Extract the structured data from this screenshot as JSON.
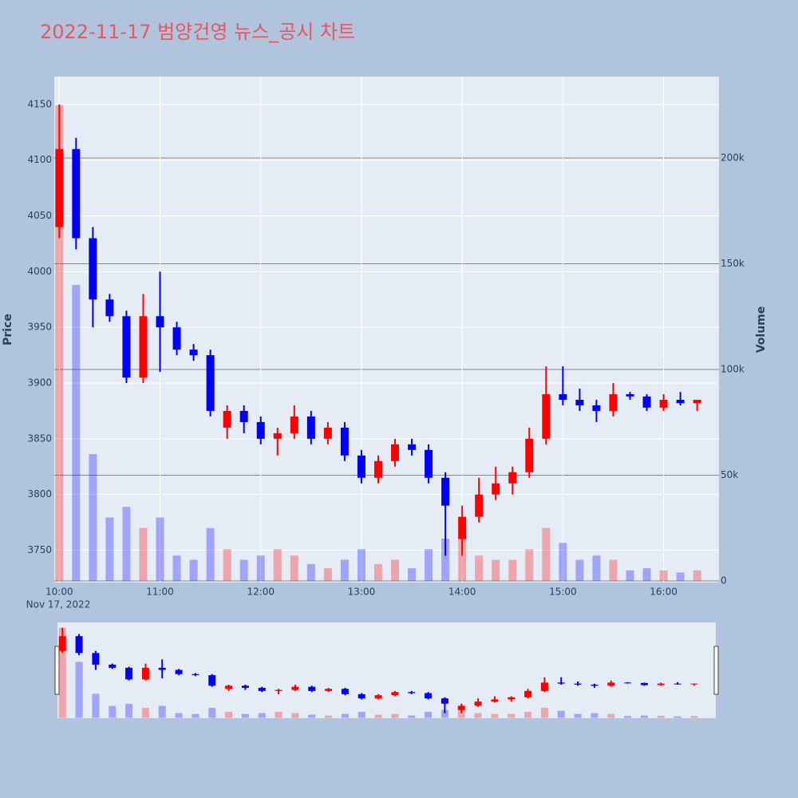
{
  "chart_data": {
    "type": "candlestick",
    "title": "2022-11-17 범양건영 뉴스_공시 차트",
    "y_label": "Price",
    "y2_label": "Volume",
    "date_label": "Nov 17, 2022",
    "increasing_color": "#ff0000",
    "decreasing_color": "#0000ff",
    "x": [
      "10:00",
      "10:10",
      "10:20",
      "10:30",
      "10:40",
      "10:50",
      "11:00",
      "11:10",
      "11:20",
      "11:30",
      "11:40",
      "11:50",
      "12:00",
      "12:10",
      "12:20",
      "12:30",
      "12:40",
      "12:50",
      "13:00",
      "13:10",
      "13:20",
      "13:30",
      "13:40",
      "13:50",
      "14:00",
      "14:10",
      "14:20",
      "14:30",
      "14:40",
      "14:50",
      "15:00",
      "15:10",
      "15:20",
      "15:30",
      "15:40",
      "15:50",
      "16:00",
      "16:10",
      "16:20"
    ],
    "open": [
      4040,
      4110,
      4030,
      3975,
      3960,
      3905,
      3960,
      3950,
      3930,
      3925,
      3860,
      3875,
      3865,
      3850,
      3855,
      3870,
      3850,
      3860,
      3835,
      3815,
      3830,
      3845,
      3840,
      3815,
      3760,
      3780,
      3800,
      3810,
      3820,
      3850,
      3890,
      3885,
      3880,
      3875,
      3890,
      3888,
      3878,
      3885,
      3882
    ],
    "high": [
      4150,
      4120,
      4040,
      3980,
      3965,
      3980,
      4000,
      3955,
      3935,
      3930,
      3880,
      3880,
      3870,
      3860,
      3880,
      3875,
      3865,
      3865,
      3840,
      3835,
      3850,
      3850,
      3845,
      3820,
      3790,
      3815,
      3825,
      3825,
      3860,
      3915,
      3915,
      3895,
      3885,
      3900,
      3892,
      3890,
      3890,
      3892,
      3885
    ],
    "low": [
      4030,
      4020,
      3950,
      3955,
      3900,
      3900,
      3910,
      3925,
      3920,
      3870,
      3850,
      3855,
      3845,
      3835,
      3850,
      3845,
      3845,
      3830,
      3810,
      3810,
      3825,
      3835,
      3810,
      3745,
      3745,
      3775,
      3795,
      3800,
      3815,
      3845,
      3880,
      3875,
      3865,
      3870,
      3885,
      3875,
      3875,
      3880,
      3875
    ],
    "close": [
      4110,
      4030,
      3975,
      3960,
      3905,
      3960,
      3950,
      3930,
      3925,
      3875,
      3875,
      3865,
      3850,
      3855,
      3870,
      3850,
      3860,
      3835,
      3815,
      3830,
      3845,
      3840,
      3815,
      3790,
      3780,
      3800,
      3810,
      3820,
      3850,
      3890,
      3885,
      3880,
      3875,
      3890,
      3888,
      3878,
      3885,
      3882,
      3885
    ],
    "volume_series": {
      "name": "Volume",
      "axis": "y2",
      "values": [
        225000,
        140000,
        60000,
        30000,
        35000,
        25000,
        30000,
        12000,
        10000,
        25000,
        15000,
        10000,
        12000,
        15000,
        12000,
        8000,
        6000,
        10000,
        15000,
        8000,
        10000,
        6000,
        15000,
        20000,
        25000,
        12000,
        10000,
        10000,
        15000,
        25000,
        18000,
        10000,
        12000,
        10000,
        5000,
        6000,
        5000,
        4000,
        5000
      ]
    },
    "xlim": [
      "09:57",
      "16:33"
    ],
    "xticks": [
      "10:00",
      "11:00",
      "12:00",
      "13:00",
      "14:00",
      "15:00",
      "16:00"
    ],
    "ylim": [
      3721,
      4175
    ],
    "yticks": [
      3750,
      3800,
      3850,
      3900,
      3950,
      4000,
      4050,
      4100,
      4150
    ],
    "y2lim": [
      -750,
      238500
    ],
    "y2ticks": [
      0,
      {
        "value": 50000,
        "label": "50k"
      },
      {
        "value": 100000,
        "label": "100k"
      },
      {
        "value": 150000,
        "label": "150k"
      },
      {
        "value": 200000,
        "label": "200k"
      }
    ],
    "grid": true
  }
}
